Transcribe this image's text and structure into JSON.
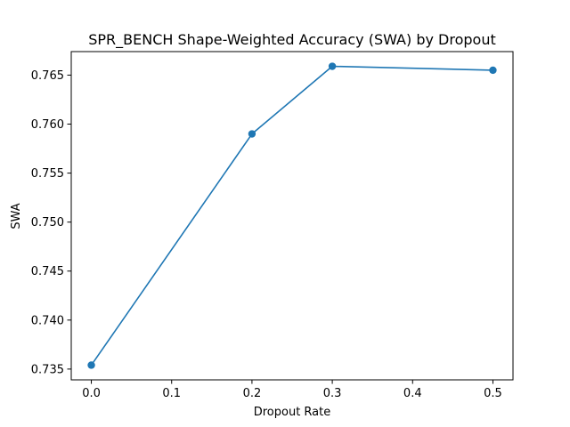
{
  "chart_data": {
    "type": "line",
    "title": "SPR_BENCH Shape-Weighted Accuracy (SWA) by Dropout",
    "xlabel": "Dropout Rate",
    "ylabel": "SWA",
    "x": [
      0.0,
      0.2,
      0.3,
      0.5
    ],
    "series": [
      {
        "values": [
          0.7354,
          0.759,
          0.7659,
          0.7655
        ],
        "color": "#1f77b4",
        "marker": "circle"
      }
    ],
    "xlim": [
      -0.025,
      0.525
    ],
    "ylim": [
      0.7339,
      0.7674
    ],
    "xticks": [
      0.0,
      0.1,
      0.2,
      0.3,
      0.4,
      0.5
    ],
    "xtick_labels": [
      "0.0",
      "0.1",
      "0.2",
      "0.3",
      "0.4",
      "0.5"
    ],
    "yticks": [
      0.735,
      0.74,
      0.745,
      0.75,
      0.755,
      0.76,
      0.765
    ],
    "ytick_labels": [
      "0.735",
      "0.740",
      "0.745",
      "0.750",
      "0.755",
      "0.760",
      "0.765"
    ],
    "grid": false,
    "legend": false
  }
}
